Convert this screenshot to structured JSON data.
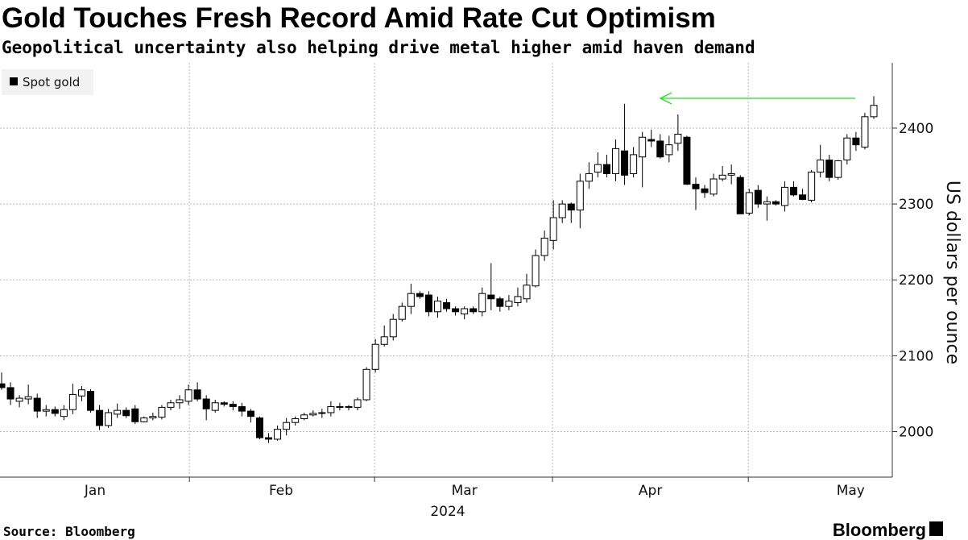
{
  "chart_data": {
    "type": "candlestick",
    "title": "Gold Touches Fresh Record Amid Rate Cut Optimism",
    "subtitle": "Geopolitical uncertainty also helping drive metal higher amid haven demand",
    "y_label": "US dollars per ounce",
    "year_label": "2024",
    "source": "Source: Bloomberg",
    "brand": "Bloomberg",
    "up_color": "#ffffff",
    "down_color": "#000000",
    "grid": true,
    "ylim": [
      1940,
      2486
    ],
    "yticks": [
      2000,
      2100,
      2200,
      2300,
      2400
    ],
    "xlim": [
      0,
      98
    ],
    "xticks": [
      21.1,
      41.9,
      61.9,
      83.9
    ],
    "month_labels": [
      {
        "value": 10.5,
        "label": "Jan"
      },
      {
        "value": 31.4,
        "label": "Feb"
      },
      {
        "value": 52,
        "label": "Mar"
      },
      {
        "value": 72.9,
        "label": "Apr"
      },
      {
        "value": 95.4,
        "label": "May"
      }
    ],
    "series": [
      {
        "name": "Spot gold",
        "open": [
          2063,
          2058,
          2040,
          2043,
          2044,
          2027,
          2029,
          2020,
          2029,
          2047,
          2053,
          2028,
          2008,
          2023,
          2028,
          2030,
          2013,
          2018,
          2019,
          2032,
          2038,
          2040,
          2055,
          2043,
          2028,
          2038,
          2036,
          2033,
          2027,
          2018,
          1992,
          1990,
          2003,
          2012,
          2017,
          2022,
          2024,
          2025,
          2033,
          2032,
          2032,
          2042,
          2082,
          2115,
          2125,
          2148,
          2165,
          2182,
          2180,
          2158,
          2170,
          2162,
          2155,
          2162,
          2158,
          2180,
          2175,
          2165,
          2170,
          2175,
          2192,
          2232,
          2252,
          2282,
          2300,
          2292,
          2330,
          2342,
          2352,
          2340,
          2370,
          2340,
          2362,
          2385,
          2383,
          2365,
          2380,
          2388,
          2326,
          2320,
          2313,
          2333,
          2338,
          2335,
          2288,
          2318,
          2300,
          2303,
          2298,
          2322,
          2312,
          2305,
          2342,
          2358,
          2335,
          2358,
          2387,
          2375,
          2415
        ],
        "high": [
          2078,
          2065,
          2048,
          2062,
          2050,
          2035,
          2033,
          2035,
          2063,
          2060,
          2056,
          2035,
          2030,
          2037,
          2032,
          2035,
          2020,
          2025,
          2035,
          2042,
          2048,
          2062,
          2065,
          2048,
          2042,
          2040,
          2040,
          2038,
          2030,
          2020,
          1998,
          2008,
          2018,
          2020,
          2025,
          2028,
          2030,
          2040,
          2038,
          2035,
          2045,
          2085,
          2122,
          2140,
          2155,
          2170,
          2195,
          2185,
          2185,
          2178,
          2175,
          2165,
          2165,
          2165,
          2190,
          2222,
          2178,
          2180,
          2190,
          2208,
          2240,
          2265,
          2305,
          2305,
          2302,
          2340,
          2355,
          2368,
          2365,
          2385,
          2432,
          2375,
          2395,
          2398,
          2392,
          2390,
          2418,
          2390,
          2335,
          2325,
          2340,
          2350,
          2352,
          2338,
          2320,
          2325,
          2310,
          2305,
          2330,
          2330,
          2320,
          2345,
          2378,
          2365,
          2358,
          2392,
          2395,
          2420,
          2442
        ],
        "low": [
          2055,
          2035,
          2032,
          2036,
          2018,
          2020,
          2020,
          2015,
          2023,
          2040,
          2025,
          2002,
          2005,
          2018,
          2018,
          2010,
          2012,
          2015,
          2016,
          2028,
          2030,
          2035,
          2040,
          2015,
          2025,
          2033,
          2028,
          2020,
          2012,
          1990,
          1985,
          1988,
          1995,
          2008,
          2015,
          2020,
          2018,
          2020,
          2028,
          2028,
          2028,
          2040,
          2078,
          2112,
          2120,
          2145,
          2155,
          2175,
          2152,
          2150,
          2158,
          2153,
          2148,
          2155,
          2152,
          2160,
          2158,
          2160,
          2165,
          2170,
          2190,
          2225,
          2240,
          2275,
          2275,
          2268,
          2320,
          2335,
          2335,
          2330,
          2325,
          2335,
          2322,
          2375,
          2360,
          2355,
          2370,
          2325,
          2292,
          2308,
          2310,
          2330,
          2326,
          2290,
          2285,
          2295,
          2278,
          2298,
          2290,
          2310,
          2305,
          2302,
          2335,
          2330,
          2332,
          2352,
          2370,
          2372,
          2412
        ],
        "close": [
          2058,
          2043,
          2044,
          2046,
          2027,
          2029,
          2024,
          2029,
          2049,
          2055,
          2028,
          2008,
          2025,
          2028,
          2021,
          2013,
          2018,
          2020,
          2032,
          2038,
          2042,
          2055,
          2043,
          2030,
          2038,
          2036,
          2033,
          2027,
          2020,
          1992,
          1990,
          2003,
          2012,
          2017,
          2022,
          2024,
          2025,
          2033,
          2032,
          2033,
          2042,
          2082,
          2115,
          2125,
          2148,
          2165,
          2182,
          2178,
          2158,
          2172,
          2162,
          2158,
          2162,
          2158,
          2182,
          2175,
          2165,
          2172,
          2178,
          2193,
          2232,
          2255,
          2282,
          2300,
          2292,
          2330,
          2340,
          2352,
          2340,
          2373,
          2338,
          2365,
          2388,
          2383,
          2362,
          2378,
          2392,
          2326,
          2320,
          2315,
          2333,
          2338,
          2340,
          2287,
          2315,
          2300,
          2303,
          2300,
          2322,
          2312,
          2306,
          2342,
          2358,
          2335,
          2357,
          2387,
          2378,
          2415,
          2430
        ]
      }
    ]
  }
}
